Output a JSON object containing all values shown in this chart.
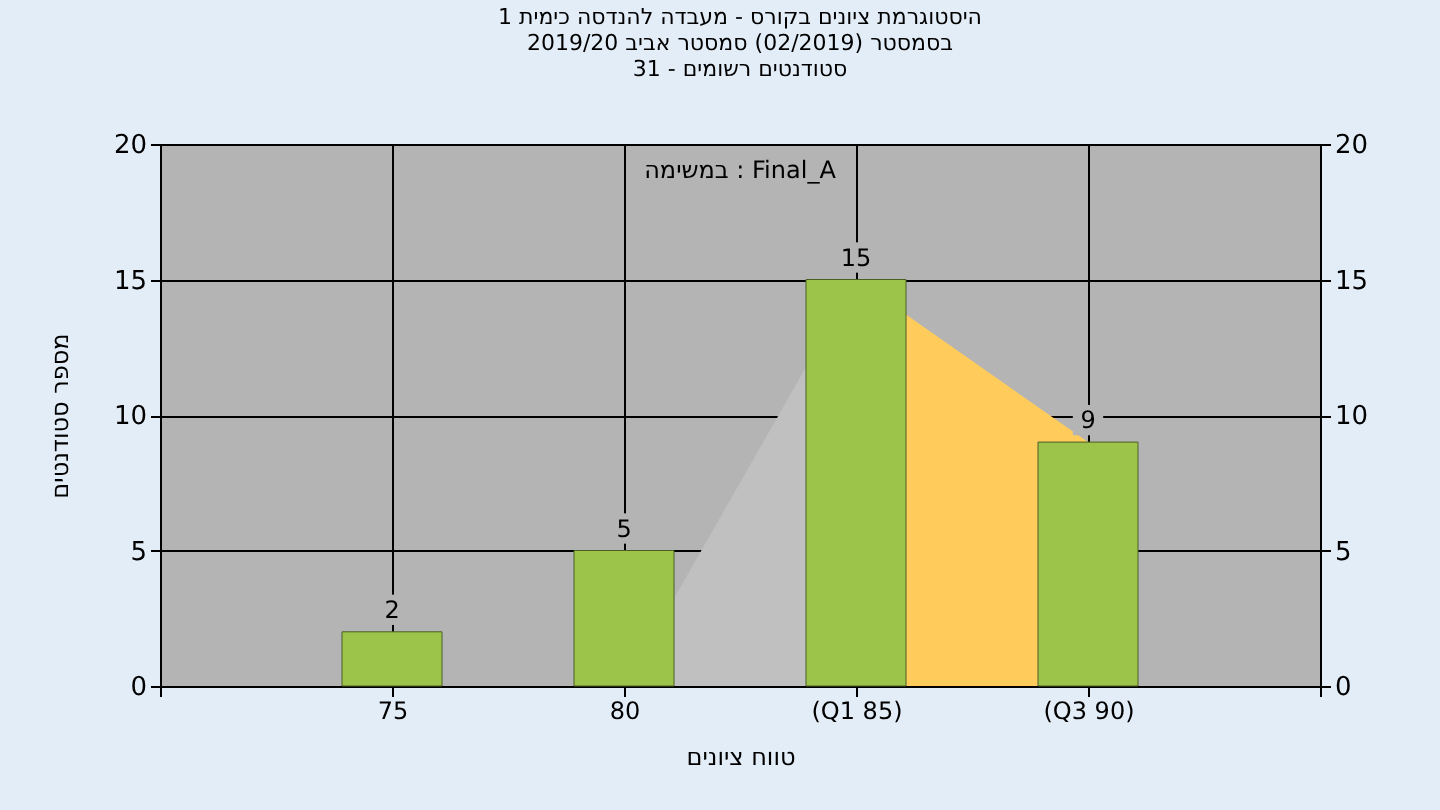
{
  "chart_data": {
    "type": "bar",
    "title": [
      "היסטוגרמת ציונים בקורס - מעבדה להנדסה כימית 1",
      "בסמסטר  (02/2019)  סמסטר אביב 2019/20",
      "סטודנטים רשומים - 31"
    ],
    "xlabel": "טווח ציונים",
    "ylabel": "מספר סטודנטים",
    "annotations": [
      "במשימה : Final_A"
    ],
    "categories": [
      null,
      "75",
      "80",
      "(Q1 85)",
      "(Q3 90)",
      null
    ],
    "series": [
      {
        "type": "area",
        "color": "#c0c0c0",
        "values": [
          null,
          null,
          0,
          15,
          null,
          null
        ]
      },
      {
        "type": "area",
        "color": "#ffcc5c",
        "values": [
          null,
          null,
          null,
          15,
          9,
          null
        ]
      },
      {
        "color": "#9cc34a",
        "values": [
          null,
          2,
          5,
          15,
          9,
          null
        ],
        "value_labels": [
          null,
          "2",
          "5",
          "15",
          "9",
          null
        ]
      }
    ],
    "ylim": [
      0,
      20
    ],
    "yticks": [
      0,
      5,
      10,
      15,
      20
    ],
    "y2lim": [
      0,
      20
    ],
    "y2ticks": [
      0,
      5,
      10,
      15,
      20
    ],
    "grid": true
  }
}
